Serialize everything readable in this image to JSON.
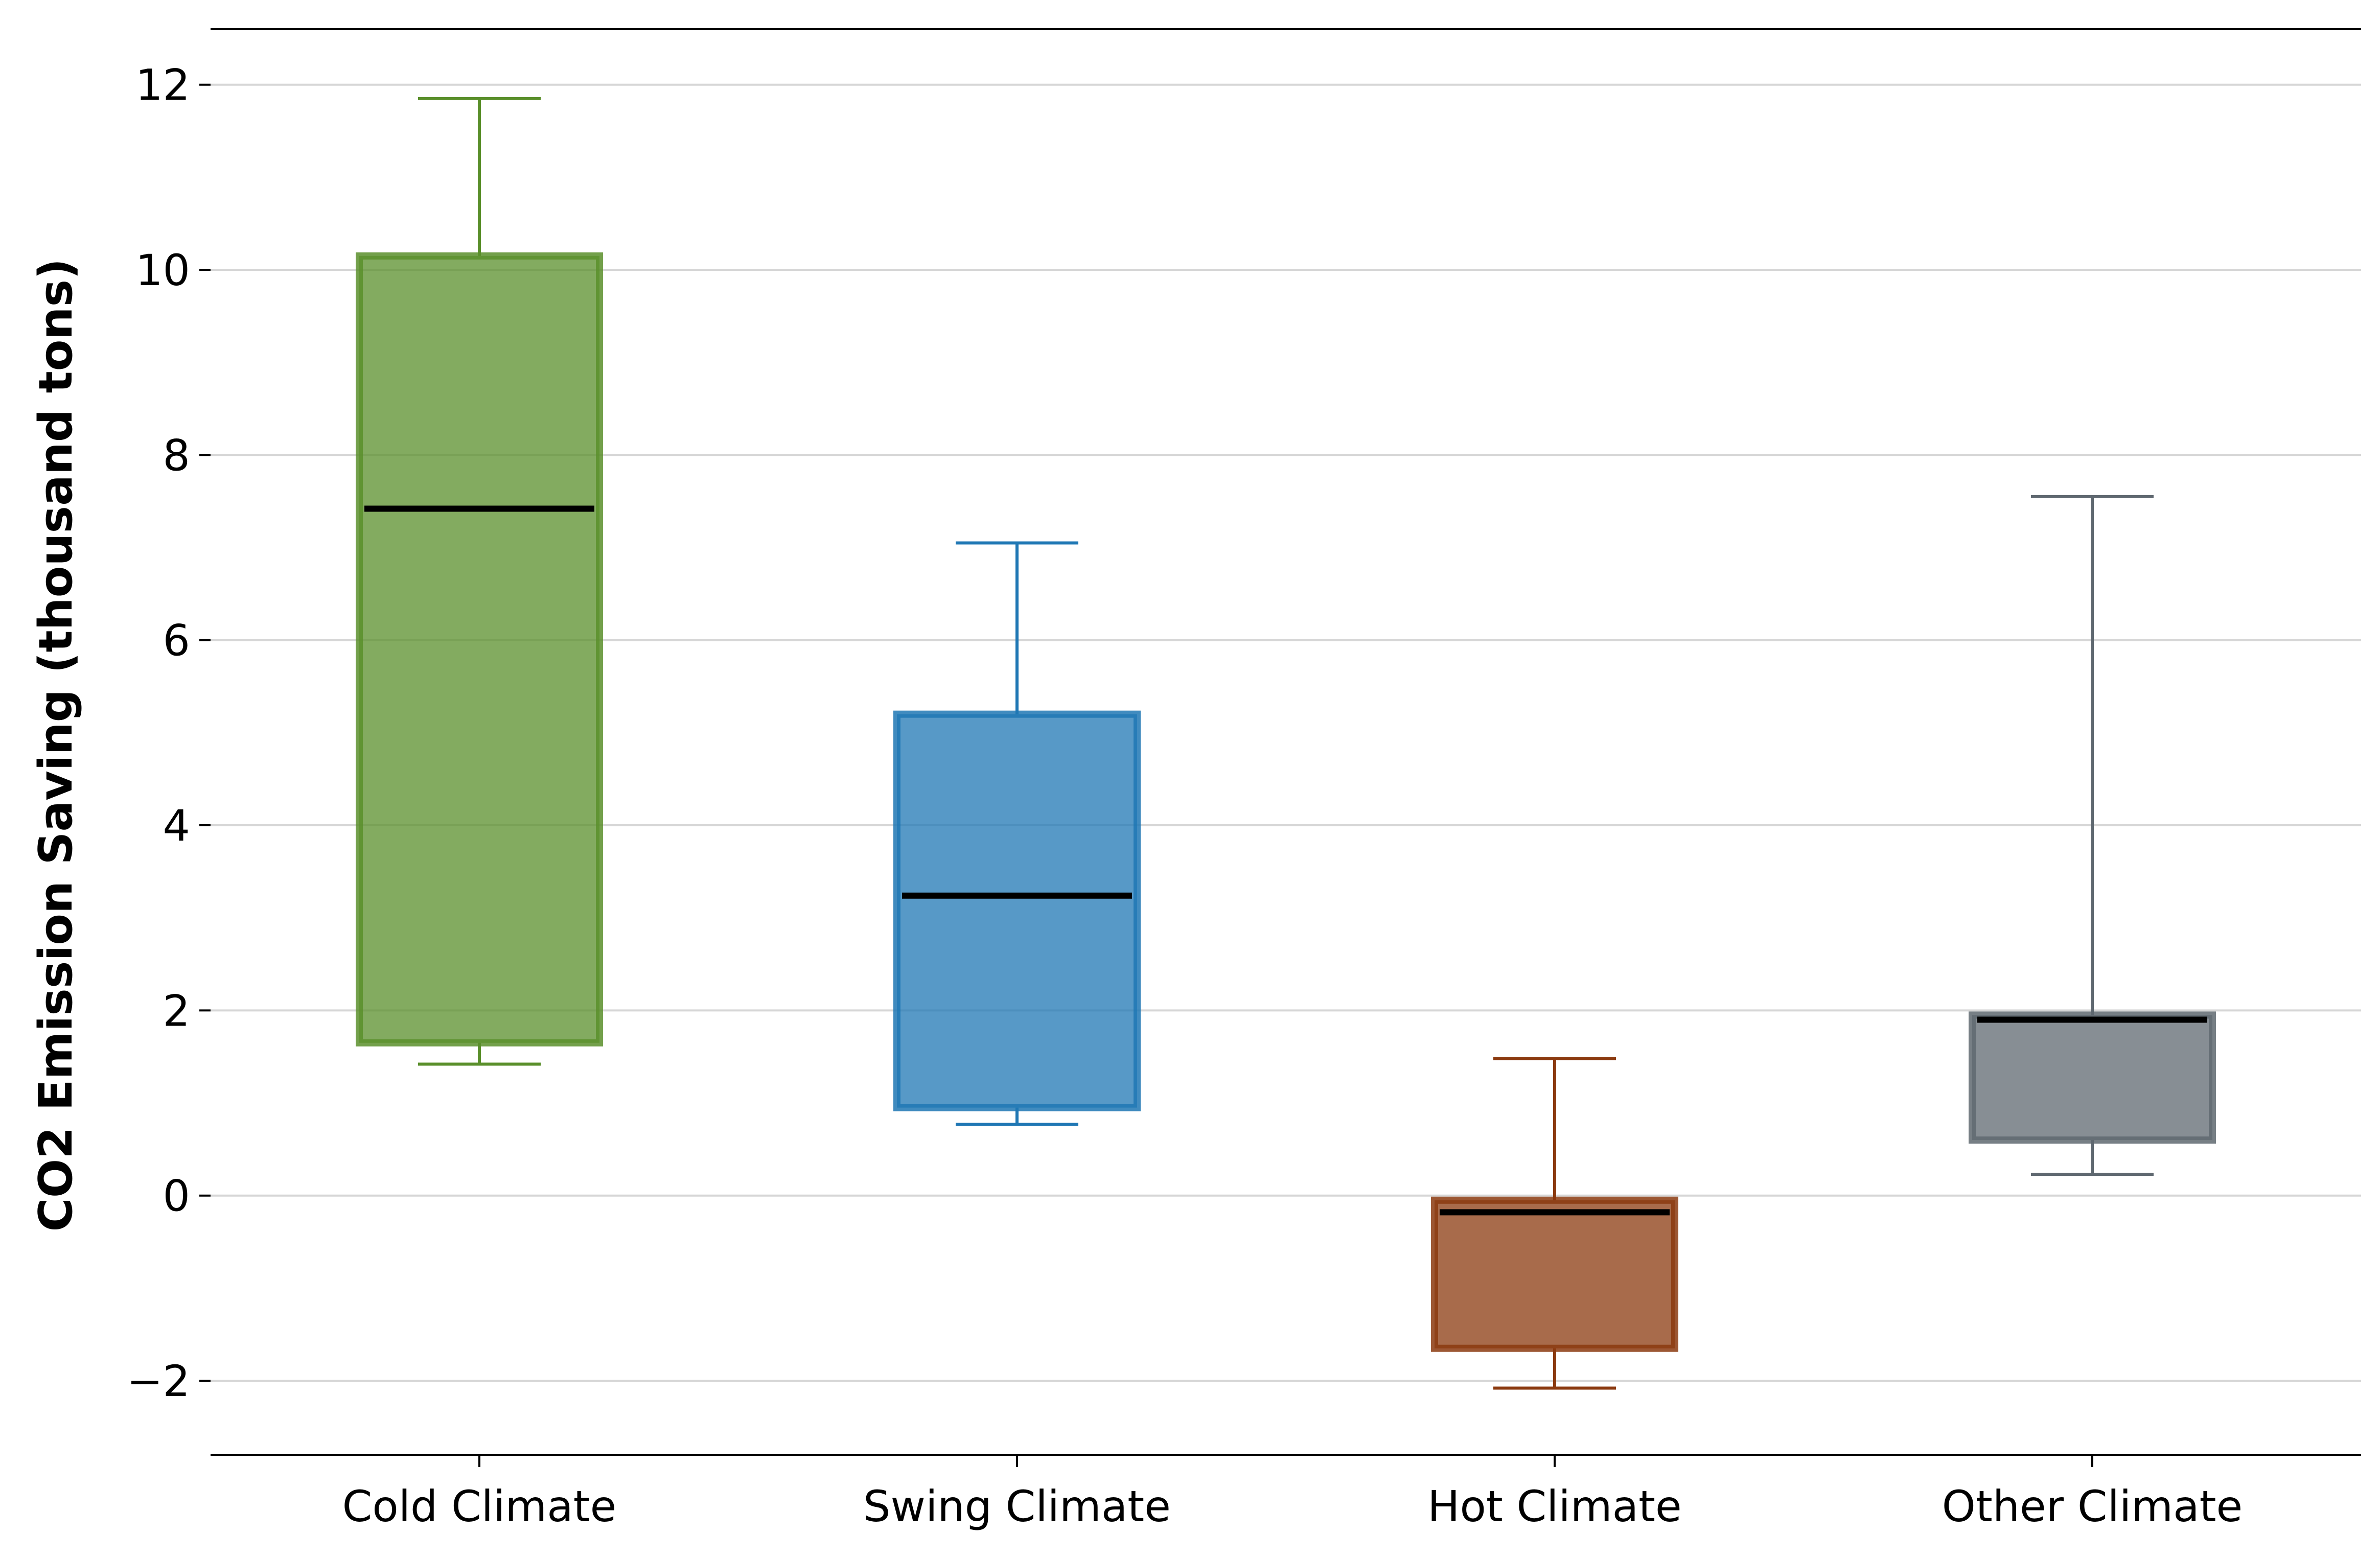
{
  "chart_data": {
    "type": "box",
    "title": "",
    "xlabel": "",
    "ylabel": "CO2 Emission Saving (thousand tons)",
    "ylim": [
      -2.8,
      12.6
    ],
    "yticks": [
      -2,
      0,
      2,
      4,
      6,
      8,
      10,
      12
    ],
    "ytick_labels": [
      "−2",
      "0",
      "2",
      "4",
      "6",
      "8",
      "10",
      "12"
    ],
    "grid": "horizontal",
    "categories": [
      "Cold Climate",
      "Swing Climate",
      "Hot Climate",
      "Other Climate"
    ],
    "boxes": [
      {
        "category": "Cold Climate",
        "whisker_low": 1.42,
        "q1": 1.65,
        "median": 7.42,
        "q3": 10.15,
        "whisker_high": 11.85,
        "color": "#5a8f2b"
      },
      {
        "category": "Swing Climate",
        "whisker_low": 0.77,
        "q1": 0.95,
        "median": 3.24,
        "q3": 5.2,
        "whisker_high": 7.05,
        "color": "#1f77b4"
      },
      {
        "category": "Hot Climate",
        "whisker_low": -2.08,
        "q1": -1.65,
        "median": -0.18,
        "q3": -0.05,
        "whisker_high": 1.48,
        "color": "#8b3a0f"
      },
      {
        "category": "Other Climate",
        "whisker_low": 0.23,
        "q1": 0.6,
        "median": 1.9,
        "q3": 1.95,
        "whisker_high": 7.55,
        "color": "#5f6870"
      }
    ]
  }
}
